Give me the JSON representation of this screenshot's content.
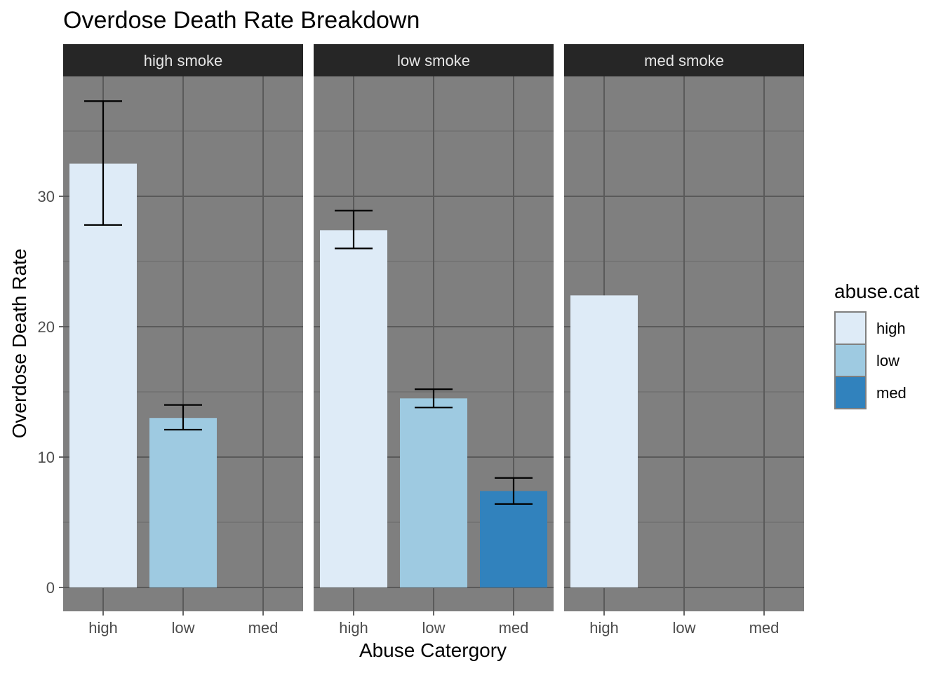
{
  "chart_data": {
    "type": "bar",
    "title": "Overdose Death Rate Breakdown",
    "xlabel": "Abuse Catergory",
    "ylabel": "Overdose Death Rate",
    "ylim": [
      -1.8,
      39.5
    ],
    "y_ticks": [
      0,
      10,
      20,
      30
    ],
    "y_tick_labels": [
      "0",
      "10",
      "20",
      "30"
    ],
    "categories": [
      "high",
      "low",
      "med"
    ],
    "grid": true,
    "facets": [
      {
        "label": "high smoke",
        "bars": [
          {
            "category": "high",
            "value": 32.5,
            "err_low": 27.8,
            "err_high": 37.3
          },
          {
            "category": "low",
            "value": 13.0,
            "err_low": 12.1,
            "err_high": 14.0
          }
        ]
      },
      {
        "label": "low smoke",
        "bars": [
          {
            "category": "high",
            "value": 27.4,
            "err_low": 26.0,
            "err_high": 28.9
          },
          {
            "category": "low",
            "value": 14.5,
            "err_low": 13.8,
            "err_high": 15.2
          },
          {
            "category": "med",
            "value": 7.4,
            "err_low": 6.4,
            "err_high": 8.4
          }
        ]
      },
      {
        "label": "med smoke",
        "bars": [
          {
            "category": "high",
            "value": 22.4
          }
        ]
      }
    ],
    "legend": {
      "title": "abuse.cat",
      "position": "right",
      "items": [
        {
          "label": "high",
          "color": "#deebf7"
        },
        {
          "label": "low",
          "color": "#9ecae1"
        },
        {
          "label": "med",
          "color": "#3182bd"
        }
      ]
    },
    "colors": {
      "panel_background": "#7f7f7f",
      "grid_major": "#5a5a5a",
      "grid_minor": "#6e6e6e",
      "strip_background": "#262626",
      "error_bar": "#000000"
    }
  }
}
